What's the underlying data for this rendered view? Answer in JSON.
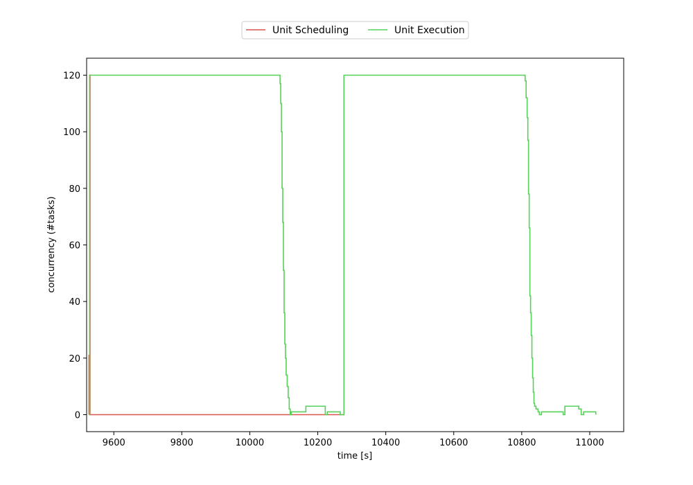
{
  "chart_data": {
    "type": "line",
    "xlabel": "time [s]",
    "ylabel": "concurrency (#tasks)",
    "xlim": [
      9520,
      11100
    ],
    "ylim": [
      -6,
      126
    ],
    "xticks": [
      9600,
      9800,
      10000,
      10200,
      10400,
      10600,
      10800,
      11000
    ],
    "yticks": [
      0,
      20,
      40,
      60,
      80,
      100,
      120
    ],
    "grid": false,
    "legend_position": "top-center",
    "series": [
      {
        "name": "Unit Scheduling",
        "color": "#d9534f",
        "step": true,
        "points": [
          [
            9527,
            0
          ],
          [
            9527,
            21
          ],
          [
            9529,
            120
          ],
          [
            9530,
            0
          ],
          [
            10278,
            0
          ]
        ]
      },
      {
        "name": "Unit Execution",
        "color": "#56d058",
        "step": true,
        "points": [
          [
            9527,
            0
          ],
          [
            9529,
            120
          ],
          [
            10087,
            120
          ],
          [
            10089,
            117
          ],
          [
            10091,
            110
          ],
          [
            10093,
            100
          ],
          [
            10095,
            80
          ],
          [
            10097,
            68
          ],
          [
            10099,
            51
          ],
          [
            10101,
            36
          ],
          [
            10103,
            25
          ],
          [
            10105,
            20
          ],
          [
            10107,
            14
          ],
          [
            10110,
            10
          ],
          [
            10113,
            6
          ],
          [
            10116,
            2
          ],
          [
            10119,
            0
          ],
          [
            10122,
            1
          ],
          [
            10165,
            3
          ],
          [
            10222,
            0
          ],
          [
            10228,
            1
          ],
          [
            10266,
            0
          ],
          [
            10275,
            0
          ],
          [
            10277,
            120
          ],
          [
            10808,
            120
          ],
          [
            10810,
            118
          ],
          [
            10813,
            112
          ],
          [
            10816,
            105
          ],
          [
            10818,
            97
          ],
          [
            10820,
            78
          ],
          [
            10822,
            66
          ],
          [
            10824,
            42
          ],
          [
            10826,
            36
          ],
          [
            10828,
            28
          ],
          [
            10830,
            20
          ],
          [
            10832,
            13
          ],
          [
            10834,
            8
          ],
          [
            10836,
            4
          ],
          [
            10838,
            3
          ],
          [
            10842,
            2
          ],
          [
            10848,
            1
          ],
          [
            10852,
            0
          ],
          [
            10858,
            1
          ],
          [
            10922,
            0
          ],
          [
            10927,
            3
          ],
          [
            10968,
            2
          ],
          [
            10975,
            0
          ],
          [
            10982,
            1
          ],
          [
            11018,
            0
          ]
        ]
      }
    ]
  }
}
